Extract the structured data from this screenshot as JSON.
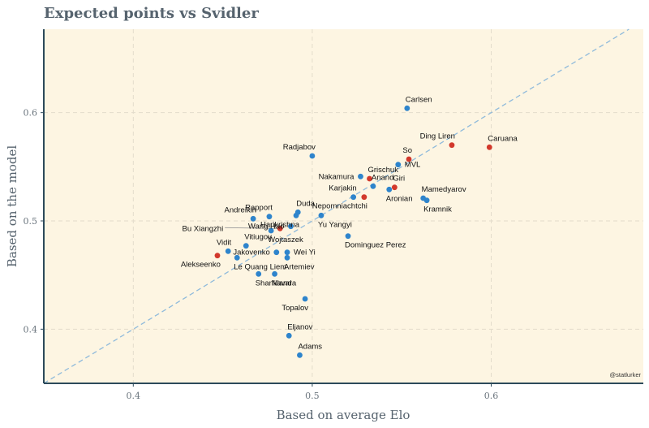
{
  "chart_data": {
    "type": "scatter",
    "title": "Expected points vs Svidler",
    "xlabel": "Based on average Elo",
    "ylabel": "Based on the model",
    "xlim": [
      0.35,
      0.685
    ],
    "ylim": [
      0.35,
      0.677
    ],
    "x_ticks": [
      0.4,
      0.5,
      0.6
    ],
    "y_ticks": [
      0.4,
      0.5,
      0.6
    ],
    "x_tick_labels": [
      "0.4",
      "0.5",
      "0.6"
    ],
    "y_tick_labels": [
      "0.4",
      "0.5",
      "0.6"
    ],
    "grid": true,
    "reference_line": "y = x",
    "credit": "@statlurker",
    "colors": {
      "blue": "#2e84cc",
      "red": "#d2382b",
      "background": "#fdf5e2",
      "grid": "#e3dccb",
      "reference": "#8fbadb",
      "axis": "#2c4a5a"
    },
    "points": [
      {
        "name": "Carlsen",
        "x": 0.553,
        "y": 0.604,
        "color": "blue",
        "anchor": "above-right"
      },
      {
        "name": "Caruana",
        "x": 0.599,
        "y": 0.568,
        "color": "red",
        "anchor": "above-right"
      },
      {
        "name": "Ding Liren",
        "x": 0.578,
        "y": 0.57,
        "color": "red",
        "anchor": "above-left"
      },
      {
        "name": "So",
        "x": 0.554,
        "y": 0.557,
        "color": "red",
        "anchor": "above-left"
      },
      {
        "name": "MVL",
        "x": 0.548,
        "y": 0.552,
        "color": "blue",
        "anchor": "right"
      },
      {
        "name": "Radjabov",
        "x": 0.5,
        "y": 0.56,
        "color": "blue",
        "anchor": "above-left"
      },
      {
        "name": "Grischuk",
        "x": 0.532,
        "y": 0.539,
        "color": "red",
        "anchor": "above-right"
      },
      {
        "name": "Nakamura",
        "x": 0.527,
        "y": 0.541,
        "color": "blue",
        "anchor": "left"
      },
      {
        "name": "Anand",
        "x": 0.534,
        "y": 0.532,
        "color": "blue",
        "anchor": "above-right"
      },
      {
        "name": "Giri",
        "x": 0.546,
        "y": 0.531,
        "color": "red",
        "anchor": "above-right"
      },
      {
        "name": "Aronian",
        "x": 0.543,
        "y": 0.529,
        "color": "blue",
        "anchor": "below-right"
      },
      {
        "name": "Mamedyarov",
        "x": 0.562,
        "y": 0.521,
        "color": "blue",
        "anchor": "above-right"
      },
      {
        "name": "Kramnik",
        "x": 0.564,
        "y": 0.519,
        "color": "blue",
        "anchor": "below-right"
      },
      {
        "name": "Karjakin",
        "x": 0.523,
        "y": 0.522,
        "color": "blue",
        "anchor": "above-left"
      },
      {
        "name": "Nepomniachtchi",
        "x": 0.529,
        "y": 0.522,
        "color": "red",
        "anchor": "below-left"
      },
      {
        "name": "Duda",
        "x": 0.492,
        "y": 0.508,
        "color": "blue",
        "anchor": "above-right"
      },
      {
        "name": "Yu Yangyi",
        "x": 0.505,
        "y": 0.505,
        "color": "blue",
        "anchor": "below-right"
      },
      {
        "name": "Rapport",
        "x": 0.476,
        "y": 0.504,
        "color": "blue",
        "anchor": "above-left"
      },
      {
        "name": "Andreikin",
        "x": 0.467,
        "y": 0.502,
        "color": "blue",
        "anchor": "above-left"
      },
      {
        "name": "Harikrishna",
        "x": 0.491,
        "y": 0.505,
        "color": "blue",
        "anchor": "below-left"
      },
      {
        "name": "Wang Hao",
        "x": 0.488,
        "y": 0.495,
        "color": "blue",
        "anchor": "left"
      },
      {
        "name": "Bu Xiangzhi",
        "x": 0.482,
        "y": 0.493,
        "color": "red",
        "anchor": "left-far"
      },
      {
        "name": "Wojtaszek",
        "x": 0.477,
        "y": 0.491,
        "color": "blue",
        "anchor": "below-right"
      },
      {
        "name": "Vitiugov",
        "x": 0.463,
        "y": 0.477,
        "color": "blue",
        "anchor": "above-right"
      },
      {
        "name": "Dominguez Perez",
        "x": 0.52,
        "y": 0.486,
        "color": "blue",
        "anchor": "below-right"
      },
      {
        "name": "Vidit",
        "x": 0.453,
        "y": 0.472,
        "color": "blue",
        "anchor": "above-left"
      },
      {
        "name": "Jakovenko",
        "x": 0.48,
        "y": 0.471,
        "color": "blue",
        "anchor": "left"
      },
      {
        "name": "Wei Yi",
        "x": 0.486,
        "y": 0.471,
        "color": "blue",
        "anchor": "right"
      },
      {
        "name": "Alekseenko",
        "x": 0.447,
        "y": 0.468,
        "color": "red",
        "anchor": "below-left"
      },
      {
        "name": "Le Quang Liem",
        "x": 0.458,
        "y": 0.466,
        "color": "blue",
        "anchor": "below-right"
      },
      {
        "name": "Artemiev",
        "x": 0.486,
        "y": 0.466,
        "color": "blue",
        "anchor": "below-right"
      },
      {
        "name": "Shankland",
        "x": 0.47,
        "y": 0.451,
        "color": "blue",
        "anchor": "below-right"
      },
      {
        "name": "Navara",
        "x": 0.479,
        "y": 0.451,
        "color": "blue",
        "anchor": "below-right"
      },
      {
        "name": "Topalov",
        "x": 0.496,
        "y": 0.428,
        "color": "blue",
        "anchor": "below-left"
      },
      {
        "name": "Eljanov",
        "x": 0.487,
        "y": 0.394,
        "color": "blue",
        "anchor": "above-right"
      },
      {
        "name": "Adams",
        "x": 0.493,
        "y": 0.376,
        "color": "blue",
        "anchor": "above-right"
      }
    ]
  }
}
